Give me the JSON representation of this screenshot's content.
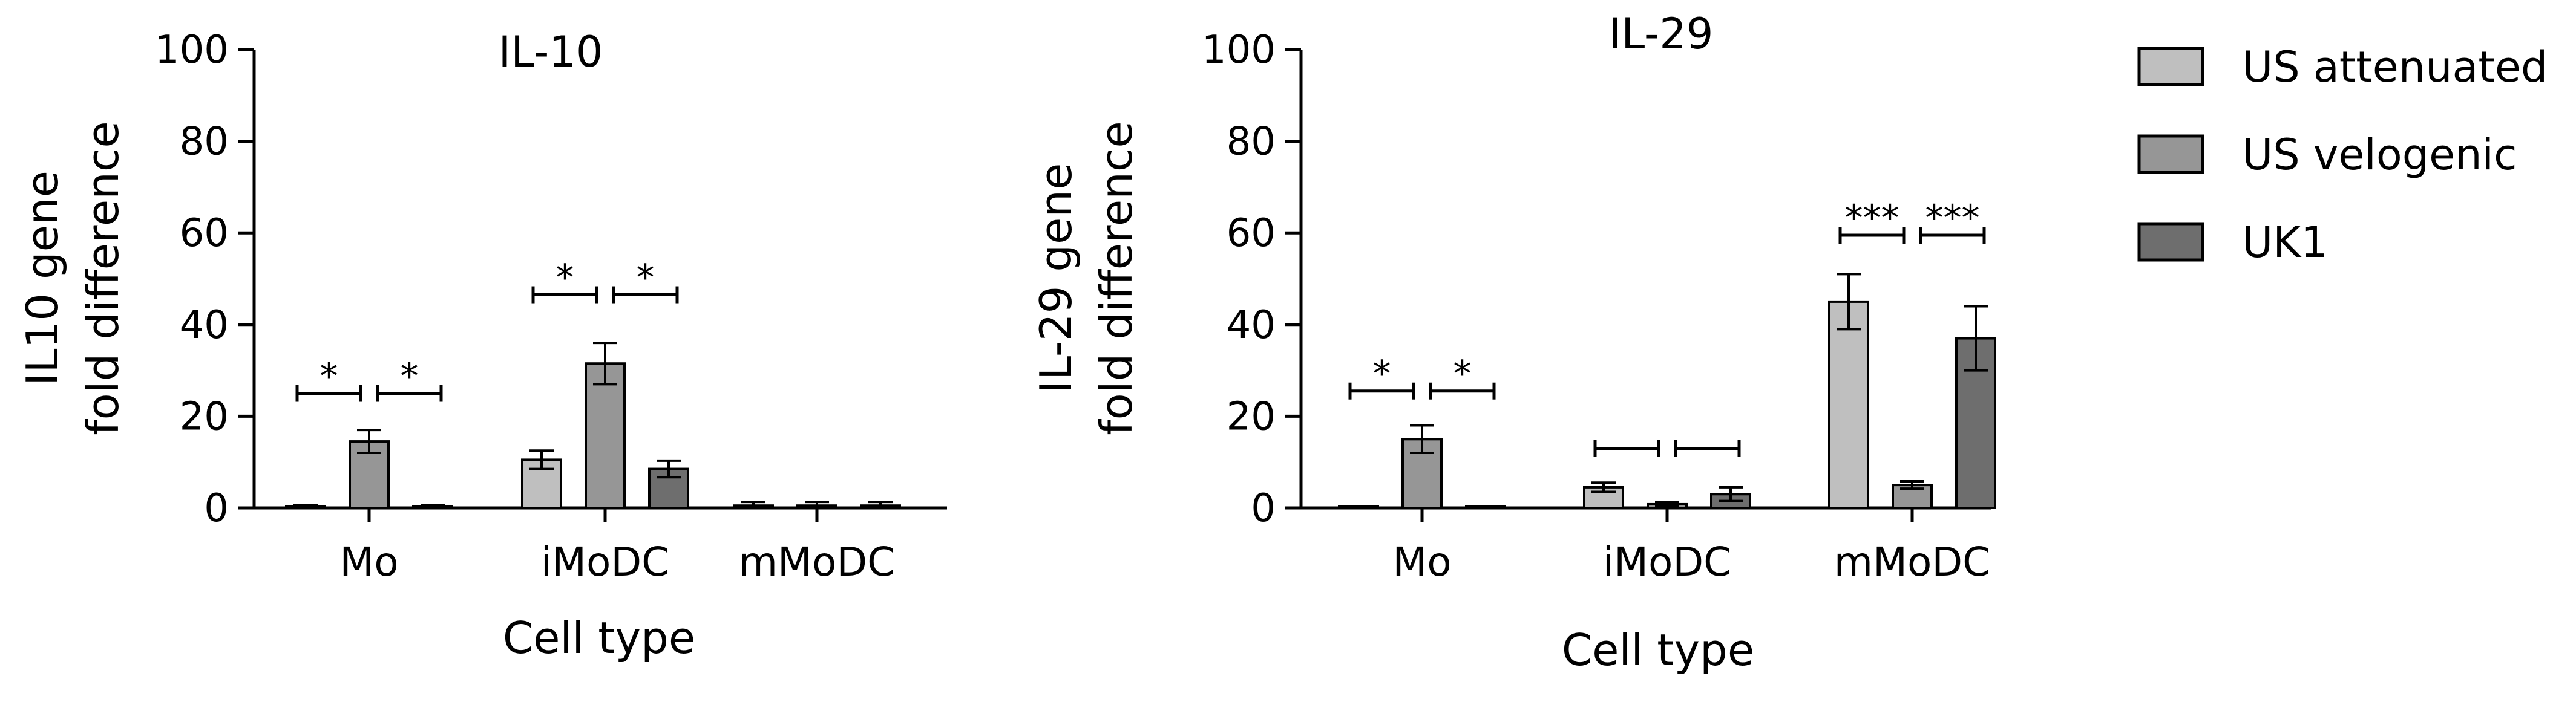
{
  "legend": [
    {
      "name": "US attenuated",
      "color": "#bfbfbf"
    },
    {
      "name": "US velogenic",
      "color": "#969696"
    },
    {
      "name": "UK1",
      "color": "#6e6e6e"
    }
  ],
  "chart_data": [
    {
      "type": "bar",
      "title": "IL-10",
      "ylabel": [
        "IL10 gene",
        "fold difference"
      ],
      "xlabel": "Cell type",
      "ylim": [
        0,
        100
      ],
      "yticks": [
        0,
        20,
        40,
        60,
        80,
        100
      ],
      "categories": [
        "Mo",
        "iMoDC",
        "mMoDC"
      ],
      "series": [
        {
          "name": "US attenuated",
          "values": [
            0.3,
            10.5,
            0.5
          ],
          "errors": [
            0.3,
            2.0,
            0.8
          ]
        },
        {
          "name": "US velogenic",
          "values": [
            14.5,
            31.5,
            0.5
          ],
          "errors": [
            2.5,
            4.5,
            0.8
          ]
        },
        {
          "name": "UK1",
          "values": [
            0.3,
            8.5,
            0.5
          ],
          "errors": [
            0.3,
            1.8,
            0.8
          ]
        }
      ],
      "significance": [
        {
          "category": 0,
          "from": 0,
          "to": 1,
          "label": "*",
          "y": 25
        },
        {
          "category": 0,
          "from": 1,
          "to": 2,
          "label": "*",
          "y": 25
        },
        {
          "category": 1,
          "from": 0,
          "to": 1,
          "label": "*",
          "y": 46.5
        },
        {
          "category": 1,
          "from": 1,
          "to": 2,
          "label": "*",
          "y": 46.5
        }
      ]
    },
    {
      "type": "bar",
      "title": "IL-29",
      "ylabel": [
        "IL-29 gene",
        "fold difference"
      ],
      "xlabel": "Cell type",
      "ylim": [
        0,
        100
      ],
      "yticks": [
        0,
        20,
        40,
        60,
        80,
        100
      ],
      "categories": [
        "Mo",
        "iMoDC",
        "mMoDC"
      ],
      "series": [
        {
          "name": "US attenuated",
          "values": [
            0.2,
            4.5,
            45
          ],
          "errors": [
            0.2,
            1.0,
            6.0
          ]
        },
        {
          "name": "US velogenic",
          "values": [
            15,
            0.8,
            5
          ],
          "errors": [
            3.0,
            0.5,
            0.8
          ]
        },
        {
          "name": "UK1",
          "values": [
            0.2,
            3.0,
            37
          ],
          "errors": [
            0.2,
            1.5,
            7.0
          ]
        }
      ],
      "significance": [
        {
          "category": 0,
          "from": 0,
          "to": 1,
          "label": "*",
          "y": 25.5
        },
        {
          "category": 0,
          "from": 1,
          "to": 2,
          "label": "*",
          "y": 25.5
        },
        {
          "category": 1,
          "from": 0,
          "to": 1,
          "label": "",
          "y": 13
        },
        {
          "category": 1,
          "from": 1,
          "to": 2,
          "label": "",
          "y": 13
        },
        {
          "category": 2,
          "from": 0,
          "to": 1,
          "label": "***",
          "y": 59.5
        },
        {
          "category": 2,
          "from": 1,
          "to": 2,
          "label": "***",
          "y": 59.5
        }
      ]
    }
  ]
}
